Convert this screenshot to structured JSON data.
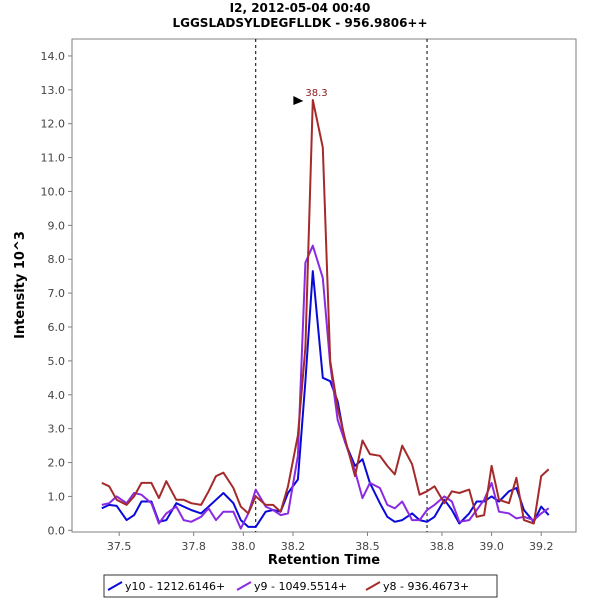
{
  "chart_data": {
    "type": "line",
    "title": "I2, 2012-05-04 00:40",
    "subtitle": "LGGSLADSYLDEGFLLDK - 956.9806++",
    "xlabel": "Retention Time",
    "ylabel": "Intensity 10^3",
    "xlim": [
      37.31,
      39.34
    ],
    "ylim": [
      -0.05,
      14.5
    ],
    "xticks": [
      "37.5",
      "37.8",
      "38.0",
      "38.2",
      "38.5",
      "38.8",
      "39.0",
      "39.2"
    ],
    "yticks": [
      "0.0",
      "1.0",
      "2.0",
      "3.0",
      "4.0",
      "5.0",
      "6.0",
      "7.0",
      "8.0",
      "9.0",
      "10.0",
      "11.0",
      "12.0",
      "13.0",
      "14.0"
    ],
    "integration_bounds": [
      38.05,
      38.74
    ],
    "peak_annotation": {
      "x": 38.25,
      "y": 12.7,
      "label": "38.3"
    },
    "legend_position": "bottom-center",
    "x": [
      37.43,
      37.46,
      37.49,
      37.53,
      37.56,
      37.59,
      37.63,
      37.66,
      37.69,
      37.73,
      37.76,
      37.79,
      37.83,
      37.86,
      37.89,
      37.92,
      37.96,
      37.99,
      38.02,
      38.05,
      38.09,
      38.12,
      38.15,
      38.18,
      38.22,
      38.25,
      38.28,
      38.32,
      38.35,
      38.38,
      38.41,
      38.45,
      38.48,
      38.51,
      38.55,
      38.58,
      38.61,
      38.64,
      38.68,
      38.71,
      38.74,
      38.77,
      38.81,
      38.84,
      38.87,
      38.91,
      38.94,
      38.97,
      39.0,
      39.03,
      39.07,
      39.1,
      39.13,
      39.17,
      39.2,
      39.23
    ],
    "series": [
      {
        "name": "y10 - 1212.6146+",
        "color": "#0a0ad8",
        "values": [
          0.65,
          0.75,
          0.72,
          0.3,
          0.45,
          0.85,
          0.85,
          0.25,
          0.3,
          0.8,
          0.7,
          0.6,
          0.5,
          0.7,
          0.9,
          1.1,
          0.8,
          0.3,
          0.1,
          0.1,
          0.55,
          0.6,
          0.55,
          1.1,
          1.5,
          4.4,
          7.65,
          4.5,
          4.4,
          3.8,
          2.6,
          1.9,
          2.1,
          1.4,
          0.8,
          0.4,
          0.25,
          0.3,
          0.5,
          0.3,
          0.25,
          0.4,
          0.9,
          0.6,
          0.2,
          0.5,
          0.85,
          0.85,
          1.0,
          0.85,
          1.15,
          1.25,
          0.6,
          0.25,
          0.7,
          0.45
        ]
      },
      {
        "name": "y9 - 1049.5514+",
        "color": "#8a2be2",
        "values": [
          0.75,
          0.8,
          1.0,
          0.8,
          1.1,
          1.05,
          0.8,
          0.2,
          0.5,
          0.7,
          0.3,
          0.25,
          0.4,
          0.65,
          0.3,
          0.55,
          0.55,
          0.05,
          0.5,
          1.2,
          0.7,
          0.6,
          0.45,
          0.5,
          2.2,
          7.9,
          8.4,
          7.45,
          4.9,
          3.25,
          2.6,
          1.75,
          0.95,
          1.4,
          1.25,
          0.75,
          0.65,
          0.85,
          0.3,
          0.3,
          0.6,
          0.75,
          1.0,
          0.85,
          0.25,
          0.3,
          0.6,
          0.9,
          1.4,
          0.55,
          0.5,
          0.35,
          0.4,
          0.3,
          0.5,
          0.65
        ]
      },
      {
        "name": "y8 - 936.4673+",
        "color": "#a52a2a",
        "values": [
          1.4,
          1.3,
          0.9,
          0.75,
          1.0,
          1.4,
          1.4,
          0.95,
          1.45,
          0.9,
          0.9,
          0.8,
          0.75,
          1.15,
          1.6,
          1.7,
          1.25,
          0.7,
          0.5,
          1.0,
          0.75,
          0.75,
          0.55,
          1.3,
          2.8,
          5.4,
          12.7,
          11.3,
          5.0,
          3.6,
          2.7,
          1.6,
          2.65,
          2.25,
          2.2,
          1.9,
          1.65,
          2.5,
          1.95,
          1.05,
          1.15,
          1.3,
          0.8,
          1.15,
          1.1,
          1.2,
          0.4,
          0.45,
          1.9,
          0.9,
          0.8,
          1.55,
          0.3,
          0.2,
          1.6,
          1.8
        ]
      }
    ]
  }
}
